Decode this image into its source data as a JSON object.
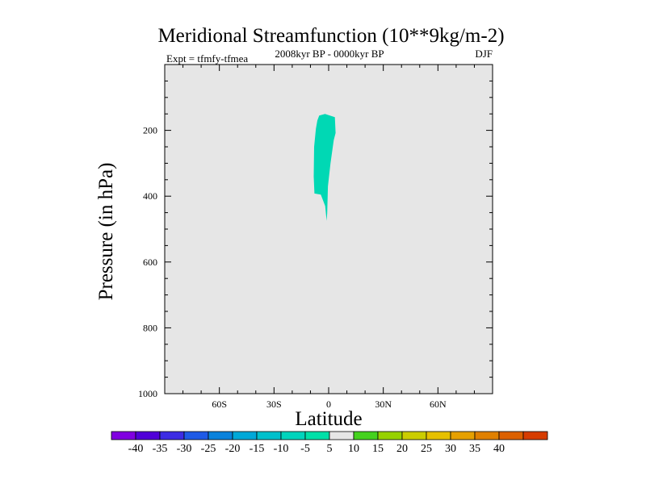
{
  "chart_data": {
    "type": "contour",
    "title": "Meridional Streamfunction (10**9kg/m-2)",
    "subtitle_left": "Expt = tfmfy-tfmea",
    "subtitle_center": "2008kyr BP - 0000kyr BP",
    "subtitle_right": "DJF",
    "xlabel": "Latitude",
    "ylabel": "Pressure (in hPa)",
    "xlim": [
      -90,
      90
    ],
    "ylim": [
      1000,
      0
    ],
    "x_ticks": [
      {
        "value": -60,
        "label": "60S"
      },
      {
        "value": -30,
        "label": "30S"
      },
      {
        "value": 0,
        "label": "0"
      },
      {
        "value": 30,
        "label": "30N"
      },
      {
        "value": 60,
        "label": "60N"
      }
    ],
    "y_ticks": [
      {
        "value": 200,
        "label": "200"
      },
      {
        "value": 400,
        "label": "400"
      },
      {
        "value": 600,
        "label": "600"
      },
      {
        "value": 800,
        "label": "800"
      },
      {
        "value": 1000,
        "label": "1000"
      }
    ],
    "background_level": "-5 to 5",
    "shaded_regions": [
      {
        "level": "-10 to -5",
        "color": "#00d8b4",
        "outline": [
          [
            -5.2,
            155
          ],
          [
            -2.0,
            150
          ],
          [
            3.4,
            160
          ],
          [
            3.8,
            208
          ],
          [
            2.8,
            230
          ],
          [
            1.0,
            300
          ],
          [
            -0.4,
            370
          ],
          [
            -0.8,
            452
          ],
          [
            -1.1,
            475
          ],
          [
            -1.9,
            430
          ],
          [
            -4.3,
            395
          ],
          [
            -7.8,
            392
          ],
          [
            -8.2,
            340
          ],
          [
            -8.0,
            250
          ],
          [
            -7.0,
            195
          ],
          [
            -6.2,
            170
          ]
        ]
      }
    ],
    "colorbar": {
      "labels": [
        "-40",
        "-35",
        "-30",
        "-25",
        "-20",
        "-15",
        "-10",
        "-5",
        "5",
        "10",
        "15",
        "20",
        "25",
        "30",
        "35",
        "40"
      ],
      "colors": [
        "#8000e0",
        "#5000d8",
        "#3c2ce4",
        "#1e5ae6",
        "#0a82dc",
        "#00a8d8",
        "#00c0cc",
        "#00d4bc",
        "#00e0a8",
        "#e6e6e6",
        "#44d21e",
        "#96d200",
        "#cbcd00",
        "#e6c000",
        "#e6a000",
        "#e08000",
        "#dc6000",
        "#d63c00"
      ]
    }
  }
}
